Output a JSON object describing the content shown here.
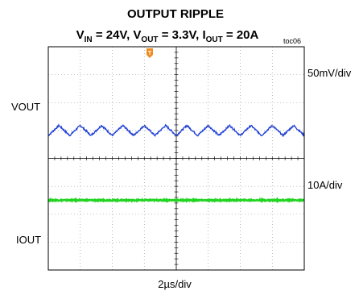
{
  "chart_data": {
    "type": "line",
    "title": "OUTPUT RIPPLE",
    "subtitle_parts": {
      "vin_sym": "V",
      "vin_sub": "IN",
      "vin_val": " = 24V, ",
      "vout_sym": "V",
      "vout_sub": "OUT",
      "vout_val": " = 3.3V, ",
      "iout_sym": "I",
      "iout_sub": "OUT",
      "iout_val": " = 20A"
    },
    "tag": "toc06",
    "xlabel": "2µs/div",
    "grid": true,
    "divisions": {
      "x": 8,
      "y": 8
    },
    "trigger_marker": "T",
    "channels": [
      {
        "name": "VOUT",
        "scale": "50mV/div",
        "color": "#1f3fd6",
        "ripple_periods": 12,
        "ripple_amplitude_div": 0.18,
        "center_div": 5.0
      },
      {
        "name": "IOUT",
        "scale": "10A/div",
        "color": "#22d422",
        "ripple_periods": 0,
        "ripple_amplitude_div": 0.02,
        "center_div": 2.5
      }
    ],
    "ground_labels": [
      "VOUT",
      "IOUT"
    ]
  },
  "colors": {
    "grid": "#888888",
    "frame": "#000000",
    "trigger": "#f08c1e"
  }
}
